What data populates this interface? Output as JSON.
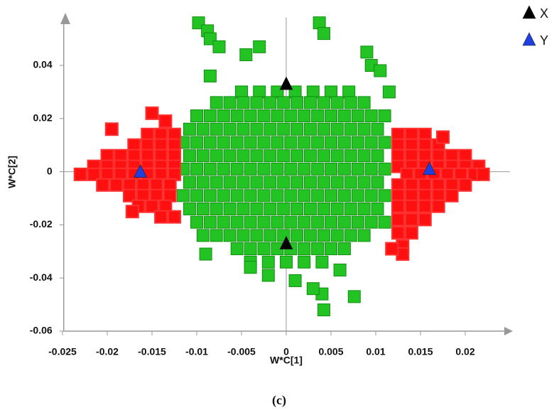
{
  "chart_data": {
    "type": "scatter",
    "xlabel": "W*C[1]",
    "ylabel": "W*C[2]",
    "caption": "(c)",
    "xlim": [
      -0.0255,
      0.025
    ],
    "ylim": [
      -0.06,
      0.058
    ],
    "xticks": [
      -0.025,
      -0.02,
      -0.015,
      -0.01,
      -0.005,
      0,
      0.005,
      0.01,
      0.015,
      0.02
    ],
    "yticks": [
      -0.06,
      -0.04,
      -0.02,
      0,
      0.02,
      0.04
    ],
    "grid": false,
    "legend": "top-right",
    "series": [
      {
        "color": "#22c322",
        "marker": "square",
        "x": [
          -0.005,
          -0.003,
          -0.001,
          0.001,
          0.003,
          0.005,
          0.007
        ],
        "values": [
          0.03,
          0.03,
          0.03,
          0.03,
          0.03,
          0.03,
          0.03
        ]
      },
      {
        "color": "#22c322",
        "marker": "square",
        "x": [
          -0.0078,
          -0.0063,
          -0.0048,
          -0.0033,
          -0.0018,
          -0.0003,
          0.0012,
          0.0027,
          0.0042,
          0.0057,
          0.0072,
          0.0087
        ],
        "values": [
          0.026,
          0.026,
          0.026,
          0.026,
          0.026,
          0.026,
          0.026,
          0.026,
          0.026,
          0.026,
          0.026,
          0.026
        ]
      },
      {
        "color": "#22c322",
        "marker": "square",
        "x": [
          -0.01,
          -0.0085,
          -0.007,
          -0.0055,
          -0.004,
          -0.0025,
          -0.001,
          0.0005,
          0.002,
          0.0035,
          0.005,
          0.0065,
          0.008,
          0.0095,
          0.011
        ],
        "values": [
          0.021,
          0.021,
          0.021,
          0.021,
          0.021,
          0.021,
          0.021,
          0.021,
          0.021,
          0.021,
          0.021,
          0.021,
          0.021,
          0.021,
          0.021
        ]
      },
      {
        "color": "#22c322",
        "marker": "square",
        "x": [
          -0.0108,
          -0.0093,
          -0.0078,
          -0.0063,
          -0.0048,
          -0.0033,
          -0.0018,
          -0.0003,
          0.0012,
          0.0027,
          0.0042,
          0.0057,
          0.0072,
          0.0087,
          0.0102
        ],
        "values": [
          0.016,
          0.016,
          0.016,
          0.016,
          0.016,
          0.016,
          0.016,
          0.016,
          0.016,
          0.016,
          0.016,
          0.016,
          0.016,
          0.016,
          0.016
        ]
      },
      {
        "color": "#22c322",
        "marker": "square",
        "x": [
          -0.0115,
          -0.01,
          -0.0085,
          -0.007,
          -0.0055,
          -0.004,
          -0.0025,
          -0.001,
          0.0005,
          0.002,
          0.0035,
          0.005,
          0.0065,
          0.008,
          0.0095,
          0.011
        ],
        "values": [
          0.011,
          0.011,
          0.011,
          0.011,
          0.011,
          0.011,
          0.011,
          0.011,
          0.011,
          0.011,
          0.011,
          0.011,
          0.011,
          0.011,
          0.011,
          0.011
        ]
      },
      {
        "color": "#22c322",
        "marker": "square",
        "x": [
          -0.0108,
          -0.0093,
          -0.0078,
          -0.0063,
          -0.0048,
          -0.0033,
          -0.0018,
          -0.0003,
          0.0012,
          0.0027,
          0.0042,
          0.0057,
          0.0072,
          0.0087,
          0.0102
        ],
        "values": [
          0.006,
          0.006,
          0.006,
          0.006,
          0.006,
          0.006,
          0.006,
          0.006,
          0.006,
          0.006,
          0.006,
          0.006,
          0.006,
          0.006,
          0.006
        ]
      },
      {
        "color": "#22c322",
        "marker": "square",
        "x": [
          -0.0115,
          -0.01,
          -0.0085,
          -0.007,
          -0.0055,
          -0.004,
          -0.0025,
          -0.001,
          0.0005,
          0.002,
          0.0035,
          0.005,
          0.0065,
          0.008,
          0.0095,
          0.011
        ],
        "values": [
          0.001,
          0.001,
          0.001,
          0.001,
          0.001,
          0.001,
          0.001,
          0.001,
          0.001,
          0.001,
          0.001,
          0.001,
          0.001,
          0.001,
          0.001,
          0.001
        ]
      },
      {
        "color": "#22c322",
        "marker": "square",
        "x": [
          -0.0108,
          -0.0093,
          -0.0078,
          -0.0063,
          -0.0048,
          -0.0033,
          -0.0018,
          -0.0003,
          0.0012,
          0.0027,
          0.0042,
          0.0057,
          0.0072,
          0.0087,
          0.0102
        ],
        "values": [
          -0.004,
          -0.004,
          -0.004,
          -0.004,
          -0.004,
          -0.004,
          -0.004,
          -0.004,
          -0.004,
          -0.004,
          -0.004,
          -0.004,
          -0.004,
          -0.004,
          -0.004
        ]
      },
      {
        "color": "#22c322",
        "marker": "square",
        "x": [
          -0.0115,
          -0.01,
          -0.0085,
          -0.007,
          -0.0055,
          -0.004,
          -0.0025,
          -0.001,
          0.0005,
          0.002,
          0.0035,
          0.005,
          0.0065,
          0.008,
          0.0095,
          0.011
        ],
        "values": [
          -0.009,
          -0.009,
          -0.009,
          -0.009,
          -0.009,
          -0.009,
          -0.009,
          -0.009,
          -0.009,
          -0.009,
          -0.009,
          -0.009,
          -0.009,
          -0.009,
          -0.009,
          -0.009
        ]
      },
      {
        "color": "#22c322",
        "marker": "square",
        "x": [
          -0.0108,
          -0.0093,
          -0.0078,
          -0.0063,
          -0.0048,
          -0.0033,
          -0.0018,
          -0.0003,
          0.0012,
          0.0027,
          0.0042,
          0.0057,
          0.0072,
          0.0087,
          0.0102
        ],
        "values": [
          -0.014,
          -0.014,
          -0.014,
          -0.014,
          -0.014,
          -0.014,
          -0.014,
          -0.014,
          -0.014,
          -0.014,
          -0.014,
          -0.014,
          -0.014,
          -0.014,
          -0.014
        ]
      },
      {
        "color": "#22c322",
        "marker": "square",
        "x": [
          -0.01,
          -0.0085,
          -0.007,
          -0.0055,
          -0.004,
          -0.0025,
          -0.001,
          0.0005,
          0.002,
          0.0035,
          0.005,
          0.0065,
          0.008,
          0.0095,
          0.011
        ],
        "values": [
          -0.019,
          -0.019,
          -0.019,
          -0.019,
          -0.019,
          -0.019,
          -0.019,
          -0.019,
          -0.019,
          -0.019,
          -0.019,
          -0.019,
          -0.019,
          -0.019,
          -0.019
        ]
      },
      {
        "color": "#22c322",
        "marker": "square",
        "x": [
          -0.0093,
          -0.0078,
          -0.0063,
          -0.0048,
          -0.0033,
          -0.0018,
          -0.0003,
          0.0012,
          0.0027,
          0.0042,
          0.0057,
          0.0072,
          0.0087
        ],
        "values": [
          -0.024,
          -0.024,
          -0.024,
          -0.024,
          -0.024,
          -0.024,
          -0.024,
          -0.024,
          -0.024,
          -0.024,
          -0.024,
          -0.024,
          -0.024
        ]
      },
      {
        "color": "#22c322",
        "marker": "square",
        "x": [
          -0.0055,
          -0.004,
          -0.0025,
          -0.001,
          0.0005,
          0.002,
          0.0035,
          0.005,
          0.0065
        ],
        "values": [
          -0.029,
          -0.029,
          -0.029,
          -0.029,
          -0.029,
          -0.029,
          -0.029,
          -0.029,
          -0.029
        ]
      },
      {
        "color": "#22c322",
        "marker": "square",
        "x": [
          -0.004,
          -0.002,
          0,
          0.002,
          0.004
        ],
        "values": [
          -0.034,
          -0.034,
          -0.034,
          -0.034,
          -0.034
        ]
      },
      {
        "color": "#22c322",
        "marker": "square",
        "x": [
          -0.0098,
          -0.0088,
          -0.0085,
          -0.0075,
          -0.003,
          0.0037,
          0.0042,
          0.009,
          0.0095,
          0.0105,
          0.0115,
          -0.0045,
          -0.0085,
          0.004,
          0.0042,
          0.0076,
          -0.009,
          -0.002,
          0.001,
          0.003,
          -0.004,
          0.006
        ],
        "values": [
          0.056,
          0.053,
          0.05,
          0.047,
          0.047,
          0.056,
          0.052,
          0.045,
          0.04,
          0.038,
          0.03,
          0.044,
          0.036,
          -0.046,
          -0.052,
          -0.047,
          -0.031,
          -0.039,
          -0.041,
          -0.044,
          -0.036,
          -0.037
        ]
      },
      {
        "color": "#ff1010",
        "marker": "square",
        "x": [
          -0.0155,
          -0.014,
          -0.0125
        ],
        "values": [
          0.014,
          0.014,
          0.014
        ]
      },
      {
        "color": "#ff1010",
        "marker": "square",
        "x": [
          -0.017,
          -0.0155,
          -0.014,
          -0.0125
        ],
        "values": [
          0.01,
          0.01,
          0.01,
          0.01
        ]
      },
      {
        "color": "#ff1010",
        "marker": "square",
        "x": [
          -0.02,
          -0.0185,
          -0.017,
          -0.0155,
          -0.014,
          -0.0125
        ],
        "values": [
          0.006,
          0.006,
          0.006,
          0.006,
          0.006,
          0.006
        ]
      },
      {
        "color": "#ff1010",
        "marker": "square",
        "x": [
          -0.0215,
          -0.02,
          -0.0185,
          -0.017,
          -0.0155,
          -0.014,
          -0.0125
        ],
        "values": [
          0.002,
          0.002,
          0.002,
          0.002,
          0.002,
          0.002,
          0.002
        ]
      },
      {
        "color": "#ff1010",
        "marker": "square",
        "x": [
          -0.023,
          -0.0215,
          -0.02,
          -0.0185,
          -0.017,
          -0.0155,
          -0.014,
          -0.0125
        ],
        "values": [
          -0.001,
          -0.001,
          -0.001,
          -0.001,
          -0.001,
          -0.001,
          -0.001,
          -0.001
        ]
      },
      {
        "color": "#ff1010",
        "marker": "square",
        "x": [
          -0.0205,
          -0.019,
          -0.0175,
          -0.016,
          -0.0145,
          -0.013
        ],
        "values": [
          -0.005,
          -0.005,
          -0.005,
          -0.005,
          -0.005,
          -0.005
        ]
      },
      {
        "color": "#ff1010",
        "marker": "square",
        "x": [
          -0.0175,
          -0.016,
          -0.0145,
          -0.013
        ],
        "values": [
          -0.009,
          -0.009,
          -0.009,
          -0.009
        ]
      },
      {
        "color": "#ff1010",
        "marker": "square",
        "x": [
          -0.0165,
          -0.015,
          -0.0135
        ],
        "values": [
          -0.013,
          -0.013,
          -0.013
        ]
      },
      {
        "color": "#ff1010",
        "marker": "square",
        "x": [
          -0.014,
          -0.0125
        ],
        "values": [
          -0.017,
          -0.017
        ]
      },
      {
        "color": "#ff1010",
        "marker": "square",
        "x": [
          -0.0195,
          -0.015,
          -0.0135,
          -0.0172
        ],
        "values": [
          0.016,
          0.022,
          0.019,
          -0.015
        ]
      },
      {
        "color": "#ff1010",
        "marker": "square",
        "x": [
          0.0125,
          0.014,
          0.0155
        ],
        "values": [
          0.014,
          0.014,
          0.014
        ]
      },
      {
        "color": "#ff1010",
        "marker": "square",
        "x": [
          0.0125,
          0.014,
          0.0155,
          0.017
        ],
        "values": [
          0.01,
          0.01,
          0.01,
          0.01
        ]
      },
      {
        "color": "#ff1010",
        "marker": "square",
        "x": [
          0.0125,
          0.014,
          0.0155,
          0.017,
          0.0185,
          0.02
        ],
        "values": [
          0.006,
          0.006,
          0.006,
          0.006,
          0.006,
          0.006
        ]
      },
      {
        "color": "#ff1010",
        "marker": "square",
        "x": [
          0.0125,
          0.014,
          0.0155,
          0.017,
          0.0185,
          0.02,
          0.0215
        ],
        "values": [
          0.002,
          0.002,
          0.002,
          0.002,
          0.002,
          0.002,
          0.002
        ]
      },
      {
        "color": "#ff1010",
        "marker": "square",
        "x": [
          0.0135,
          0.015,
          0.0165,
          0.018,
          0.0195,
          0.021,
          0.022
        ],
        "values": [
          -0.001,
          -0.001,
          -0.001,
          -0.001,
          -0.001,
          -0.001,
          -0.001
        ]
      },
      {
        "color": "#ff1010",
        "marker": "square",
        "x": [
          0.0125,
          0.014,
          0.0155,
          0.017,
          0.0185,
          0.02
        ],
        "values": [
          -0.005,
          -0.005,
          -0.005,
          -0.005,
          -0.005,
          -0.005
        ]
      },
      {
        "color": "#ff1010",
        "marker": "square",
        "x": [
          0.0125,
          0.014,
          0.0155,
          0.017,
          0.0185
        ],
        "values": [
          -0.009,
          -0.009,
          -0.009,
          -0.009,
          -0.009
        ]
      },
      {
        "color": "#ff1010",
        "marker": "square",
        "x": [
          0.0125,
          0.014,
          0.0155,
          0.017
        ],
        "values": [
          -0.013,
          -0.013,
          -0.013,
          -0.013
        ]
      },
      {
        "color": "#ff1010",
        "marker": "square",
        "x": [
          0.0125,
          0.014,
          0.0155
        ],
        "values": [
          -0.018,
          -0.018,
          -0.018
        ]
      },
      {
        "color": "#ff1010",
        "marker": "square",
        "x": [
          0.0125,
          0.014
        ],
        "values": [
          -0.023,
          -0.023
        ]
      },
      {
        "color": "#ff1010",
        "marker": "square",
        "x": [
          0.013,
          0.013,
          0.0118,
          0.0175
        ],
        "values": [
          -0.028,
          -0.031,
          -0.029,
          0.013
        ]
      },
      {
        "name": "X",
        "color": "#000000",
        "marker": "triangle",
        "x": [
          0,
          0
        ],
        "values": [
          0.033,
          -0.027
        ]
      },
      {
        "name": "Y",
        "color": "#1f3fe0",
        "marker": "triangle",
        "x": [
          -0.0163,
          0.016
        ],
        "values": [
          0,
          0.001
        ]
      }
    ]
  }
}
